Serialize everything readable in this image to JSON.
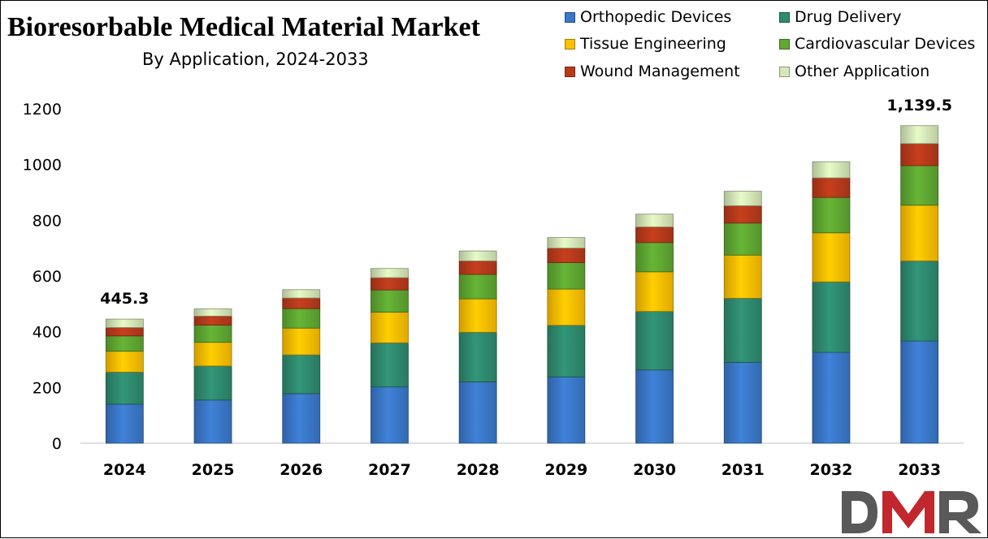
{
  "header": {
    "title": "Bioresorbable Medical Material Market",
    "subtitle": "By Application, 2024-2033"
  },
  "logo": {
    "text": "DMR",
    "colors": [
      "#595959",
      "#c0282d",
      "#595959"
    ]
  },
  "chart_data": {
    "type": "bar",
    "stacked": true,
    "title": "Bioresorbable Medical Material Market",
    "subtitle": "By Application, 2024-2033",
    "xlabel": "",
    "ylabel": "",
    "ylim": [
      0,
      1200
    ],
    "yticks": [
      0,
      200,
      400,
      600,
      800,
      1000,
      1200
    ],
    "grid": false,
    "legend_position": "top-right",
    "categories": [
      "2024",
      "2025",
      "2026",
      "2027",
      "2028",
      "2029",
      "2030",
      "2031",
      "2032",
      "2033"
    ],
    "series": [
      {
        "name": "Orthopedic Devices",
        "color": "#3a78c9",
        "values": [
          140,
          155,
          178,
          202,
          220,
          238,
          263,
          290,
          326,
          367
        ]
      },
      {
        "name": "Drug Delivery",
        "color": "#2e8b6f",
        "values": [
          115,
          122,
          139,
          158,
          178,
          185,
          210,
          230,
          253,
          287
        ]
      },
      {
        "name": "Tissue Engineering",
        "color": "#ffc000",
        "values": [
          75,
          85,
          96,
          110,
          120,
          130,
          142,
          155,
          176,
          200
        ]
      },
      {
        "name": "Cardiovascular Devices",
        "color": "#5fa832",
        "values": [
          55,
          62,
          70,
          80,
          88,
          95,
          105,
          115,
          127,
          142
        ]
      },
      {
        "name": "Wound Management",
        "color": "#b83a1b",
        "values": [
          30,
          32,
          38,
          44,
          48,
          52,
          56,
          62,
          70,
          79
        ]
      },
      {
        "name": "Other Application",
        "color": "#d6e8b8",
        "values": [
          30.3,
          26,
          30,
          33,
          36,
          38,
          46,
          52,
          58,
          64.5
        ]
      }
    ],
    "annotations": [
      {
        "category": "2024",
        "label": "445.3"
      },
      {
        "category": "2033",
        "label": "1,139.5"
      }
    ]
  }
}
